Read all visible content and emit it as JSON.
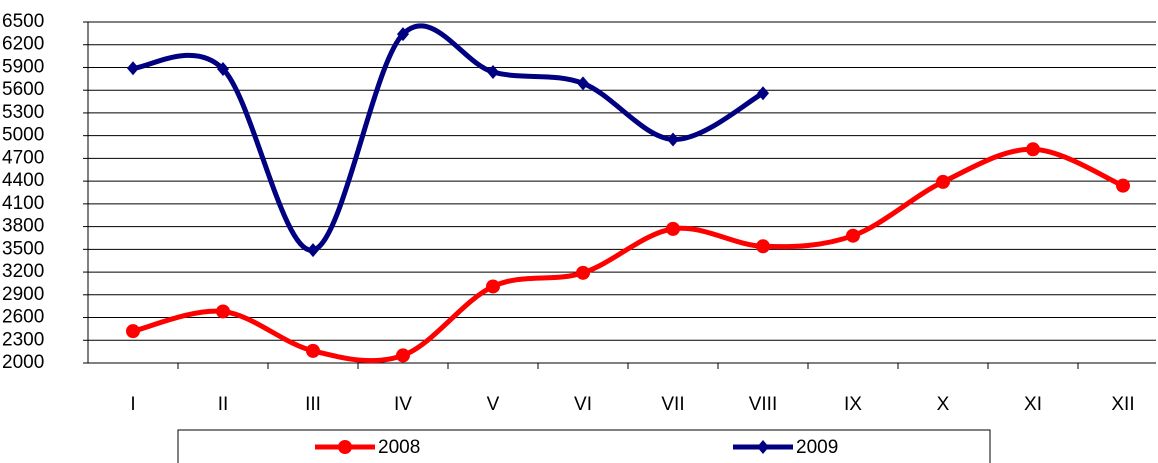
{
  "chart_data": {
    "type": "line",
    "categories": [
      "I",
      "II",
      "III",
      "IV",
      "V",
      "VI",
      "VII",
      "VIII",
      "IX",
      "X",
      "XI",
      "XII"
    ],
    "series": [
      {
        "name": "2008",
        "color": "#ff0000",
        "marker": "circle",
        "values": [
          2420,
          2680,
          2160,
          2100,
          3010,
          3190,
          3770,
          3540,
          3680,
          4390,
          4820,
          4340
        ]
      },
      {
        "name": "2009",
        "color": "#000080",
        "marker": "diamond",
        "values": [
          5890,
          5880,
          3490,
          6340,
          5840,
          5690,
          4950,
          5560,
          null,
          null,
          null,
          null
        ]
      }
    ],
    "ylim": [
      2000,
      6500
    ],
    "yticks": [
      2000,
      2300,
      2600,
      2900,
      3200,
      3500,
      3800,
      4100,
      4400,
      4700,
      5000,
      5300,
      5600,
      5900,
      6200,
      6500
    ],
    "grid": true,
    "legend": "bottom"
  }
}
